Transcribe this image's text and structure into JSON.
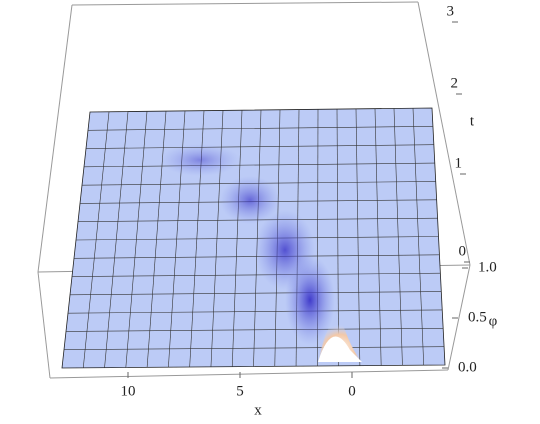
{
  "chart_data": {
    "type": "surface3d",
    "x_label": "x",
    "y_label": "t",
    "z_label": "φ",
    "xticks": [
      10,
      5,
      0
    ],
    "yticks": [
      0,
      1,
      2,
      3
    ],
    "zticks": [
      {
        "value": 0,
        "label": "0.0"
      },
      {
        "value": 0.5,
        "label": "0.5"
      },
      {
        "value": 1,
        "label": "1.0"
      }
    ]
  }
}
